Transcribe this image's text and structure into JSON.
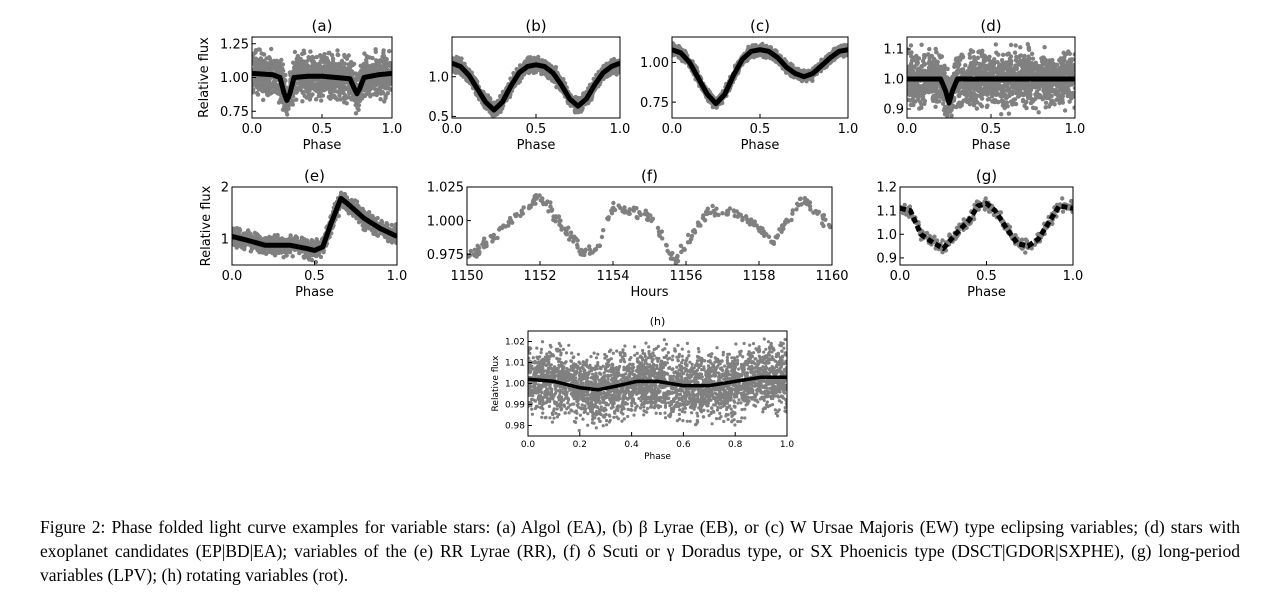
{
  "caption": "Figure 2: Phase folded light curve examples for variable stars: (a) Algol (EA), (b) β Lyrae (EB), or (c) W Ursae Majoris (EW) type eclipsing variables; (d) stars with exoplanet candidates (EP|BD|EA); variables of the (e) RR Lyrae (RR), (f) δ Scuti or γ Doradus type, or SX Phoenicis type (DSCT|GDOR|SXPHE), (g) long-period variables (LPV); (h) rotating variables (rot).",
  "colors": {
    "scatter": "#808080",
    "curve": "#000000"
  },
  "chart_data": [
    {
      "id": "a",
      "type": "scatter",
      "title": "(a)",
      "xlabel": "Phase",
      "ylabel": "Relative flux",
      "xlim": [
        0,
        1
      ],
      "ylim": [
        0.7,
        1.3
      ],
      "xticks": [
        "0.0",
        "0.5",
        "1.0"
      ],
      "yticks": [
        "0.75",
        "1.00",
        "1.25"
      ],
      "spread": 0.22,
      "n": 1400,
      "curve_style": "solid",
      "curve": [
        [
          0,
          1.03
        ],
        [
          0.15,
          1.02
        ],
        [
          0.2,
          1.0
        ],
        [
          0.23,
          0.88
        ],
        [
          0.25,
          0.83
        ],
        [
          0.27,
          0.88
        ],
        [
          0.3,
          1.0
        ],
        [
          0.4,
          1.01
        ],
        [
          0.5,
          1.01
        ],
        [
          0.6,
          1.0
        ],
        [
          0.7,
          0.99
        ],
        [
          0.73,
          0.92
        ],
        [
          0.75,
          0.88
        ],
        [
          0.77,
          0.92
        ],
        [
          0.8,
          1.0
        ],
        [
          0.9,
          1.02
        ],
        [
          1,
          1.03
        ]
      ]
    },
    {
      "id": "b",
      "type": "scatter",
      "title": "(b)",
      "xlabel": "Phase",
      "ylabel": "",
      "xlim": [
        0,
        1
      ],
      "ylim": [
        0.48,
        1.5
      ],
      "xticks": [
        "0.0",
        "0.5",
        "1.0"
      ],
      "yticks": [
        "0.5",
        "1.0"
      ],
      "spread": 0.14,
      "n": 1400,
      "curve_style": "solid",
      "curve": [
        [
          0,
          1.17
        ],
        [
          0.05,
          1.13
        ],
        [
          0.1,
          1.02
        ],
        [
          0.15,
          0.85
        ],
        [
          0.2,
          0.68
        ],
        [
          0.25,
          0.58
        ],
        [
          0.3,
          0.68
        ],
        [
          0.35,
          0.88
        ],
        [
          0.4,
          1.05
        ],
        [
          0.45,
          1.13
        ],
        [
          0.5,
          1.15
        ],
        [
          0.55,
          1.13
        ],
        [
          0.6,
          1.05
        ],
        [
          0.65,
          0.9
        ],
        [
          0.7,
          0.72
        ],
        [
          0.75,
          0.63
        ],
        [
          0.8,
          0.72
        ],
        [
          0.85,
          0.9
        ],
        [
          0.9,
          1.05
        ],
        [
          0.95,
          1.13
        ],
        [
          1,
          1.17
        ]
      ]
    },
    {
      "id": "c",
      "type": "scatter",
      "title": "(c)",
      "xlabel": "Phase",
      "ylabel": "",
      "xlim": [
        0,
        1
      ],
      "ylim": [
        0.65,
        1.16
      ],
      "xticks": [
        "0.0",
        "0.5",
        "1.0"
      ],
      "yticks": [
        "0.75",
        "1.00"
      ],
      "spread": 0.05,
      "n": 1400,
      "curve_style": "solid",
      "curve": [
        [
          0,
          1.08
        ],
        [
          0.05,
          1.06
        ],
        [
          0.1,
          1.0
        ],
        [
          0.15,
          0.9
        ],
        [
          0.2,
          0.8
        ],
        [
          0.25,
          0.74
        ],
        [
          0.3,
          0.8
        ],
        [
          0.35,
          0.92
        ],
        [
          0.4,
          1.02
        ],
        [
          0.45,
          1.07
        ],
        [
          0.5,
          1.08
        ],
        [
          0.55,
          1.07
        ],
        [
          0.6,
          1.03
        ],
        [
          0.65,
          0.97
        ],
        [
          0.7,
          0.93
        ],
        [
          0.75,
          0.91
        ],
        [
          0.8,
          0.93
        ],
        [
          0.85,
          0.98
        ],
        [
          0.9,
          1.03
        ],
        [
          0.95,
          1.07
        ],
        [
          1,
          1.08
        ]
      ]
    },
    {
      "id": "d",
      "type": "scatter",
      "title": "(d)",
      "xlabel": "Phase",
      "ylabel": "",
      "xlim": [
        0,
        1
      ],
      "ylim": [
        0.87,
        1.14
      ],
      "xticks": [
        "0.0",
        "0.5",
        "1.0"
      ],
      "yticks": [
        "0.9",
        "1.0",
        "1.1"
      ],
      "spread": 0.13,
      "n": 1600,
      "curve_style": "solid",
      "curve": [
        [
          0,
          1.0
        ],
        [
          0.2,
          1.0
        ],
        [
          0.23,
          0.96
        ],
        [
          0.25,
          0.92
        ],
        [
          0.27,
          0.96
        ],
        [
          0.3,
          1.0
        ],
        [
          0.6,
          1.0
        ],
        [
          1,
          1.0
        ]
      ]
    },
    {
      "id": "e",
      "type": "scatter",
      "title": "(e)",
      "xlabel": "Phase",
      "ylabel": "Relative flux",
      "xlim": [
        0,
        1
      ],
      "ylim": [
        0.5,
        2.0
      ],
      "xticks": [
        "0.0",
        "0.5",
        "1.0"
      ],
      "yticks": [
        "1",
        "2"
      ],
      "spread": 0.25,
      "n": 1200,
      "curve_style": "solid",
      "curve": [
        [
          0,
          1.05
        ],
        [
          0.1,
          0.97
        ],
        [
          0.2,
          0.88
        ],
        [
          0.35,
          0.88
        ],
        [
          0.45,
          0.82
        ],
        [
          0.5,
          0.78
        ],
        [
          0.55,
          0.85
        ],
        [
          0.6,
          1.3
        ],
        [
          0.66,
          1.78
        ],
        [
          0.7,
          1.68
        ],
        [
          0.8,
          1.4
        ],
        [
          0.9,
          1.2
        ],
        [
          1,
          1.05
        ]
      ]
    },
    {
      "id": "f",
      "type": "scatter",
      "title": "(f)",
      "xlabel": "Hours",
      "ylabel": "",
      "xlim": [
        1150,
        1160
      ],
      "ylim": [
        0.967,
        1.025
      ],
      "xticks": [
        "1150",
        "1152",
        "1154",
        "1156",
        "1158",
        "1160"
      ],
      "yticks": [
        "0.975",
        "1.000",
        "1.025"
      ],
      "spread": 0.006,
      "n": 330,
      "curve_style": "none",
      "curve": [
        [
          1150,
          0.972
        ],
        [
          1151,
          0.995
        ],
        [
          1152,
          1.019
        ],
        [
          1152.5,
          1.0
        ],
        [
          1153.2,
          0.975
        ],
        [
          1153.6,
          0.98
        ],
        [
          1154,
          1.01
        ],
        [
          1155,
          1.003
        ],
        [
          1155.7,
          0.97
        ],
        [
          1156.6,
          1.006
        ],
        [
          1157.5,
          1.005
        ],
        [
          1158.4,
          0.985
        ],
        [
          1159.2,
          1.017
        ],
        [
          1160,
          0.995
        ]
      ]
    },
    {
      "id": "g",
      "type": "scatter",
      "title": "(g)",
      "xlabel": "Phase",
      "ylabel": "",
      "xlim": [
        0,
        1
      ],
      "ylim": [
        0.87,
        1.2
      ],
      "xticks": [
        "0.0",
        "0.5",
        "1.0"
      ],
      "yticks": [
        "0.9",
        "1.0",
        "1.1",
        "1.2"
      ],
      "spread": 0.04,
      "n": 300,
      "curve_style": "dashed",
      "curve": [
        [
          0,
          1.11
        ],
        [
          0.06,
          1.1
        ],
        [
          0.12,
          1.0
        ],
        [
          0.18,
          0.97
        ],
        [
          0.25,
          0.94
        ],
        [
          0.32,
          1.0
        ],
        [
          0.4,
          1.06
        ],
        [
          0.45,
          1.12
        ],
        [
          0.5,
          1.13
        ],
        [
          0.55,
          1.1
        ],
        [
          0.62,
          1.02
        ],
        [
          0.68,
          0.96
        ],
        [
          0.74,
          0.95
        ],
        [
          0.8,
          0.98
        ],
        [
          0.86,
          1.05
        ],
        [
          0.92,
          1.12
        ],
        [
          1,
          1.11
        ]
      ]
    },
    {
      "id": "h",
      "type": "scatter",
      "title": "(h)",
      "xlabel": "Phase",
      "ylabel": "Relative flux",
      "xlim": [
        0,
        1
      ],
      "ylim": [
        0.975,
        1.025
      ],
      "xticks": [
        "0.0",
        "0.2",
        "0.4",
        "0.6",
        "0.8",
        "1.0"
      ],
      "yticks": [
        "0.98",
        "0.99",
        "1.00",
        "1.01",
        "1.02"
      ],
      "spread": 0.022,
      "n": 3500,
      "curve_style": "solid",
      "curve": [
        [
          0,
          1.002
        ],
        [
          0.1,
          1.001
        ],
        [
          0.2,
          0.998
        ],
        [
          0.27,
          0.997
        ],
        [
          0.35,
          0.999
        ],
        [
          0.42,
          1.001
        ],
        [
          0.5,
          1.001
        ],
        [
          0.6,
          0.999
        ],
        [
          0.7,
          0.999
        ],
        [
          0.8,
          1.001
        ],
        [
          0.9,
          1.003
        ],
        [
          1,
          1.003
        ]
      ]
    }
  ]
}
